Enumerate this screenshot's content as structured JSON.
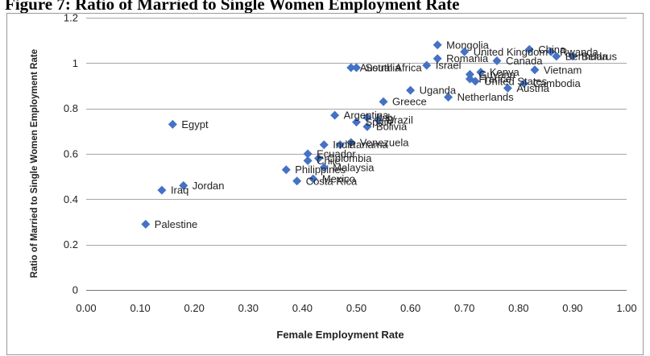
{
  "page": {
    "title": "Figure 7: Ratio of Married to Single Women Employment Rate"
  },
  "chart_data": {
    "type": "scatter",
    "title": "",
    "xlabel": "Female Employment Rate",
    "ylabel": "Ratio of Married to Single Women Employment Rate",
    "xlim": [
      0,
      1
    ],
    "ylim": [
      0,
      1.2
    ],
    "xticks": [
      "0.00",
      "0.10",
      "0.20",
      "0.30",
      "0.40",
      "0.50",
      "0.60",
      "0.70",
      "0.80",
      "0.90",
      "1.00"
    ],
    "yticks": [
      "0",
      "0.2",
      "0.4",
      "0.6",
      "0.8",
      "1",
      "1.2"
    ],
    "marker_color": "#4472C4",
    "grid": "horizontal",
    "points": [
      {
        "label": "Mongolia",
        "x": 0.65,
        "y": 1.08
      },
      {
        "label": "United Kingdom",
        "x": 0.7,
        "y": 1.05
      },
      {
        "label": "China",
        "x": 0.82,
        "y": 1.06
      },
      {
        "label": "Rwanda",
        "x": 0.86,
        "y": 1.05
      },
      {
        "label": "Bermuda",
        "x": 0.87,
        "y": 1.03
      },
      {
        "label": "Belarus",
        "x": 0.9,
        "y": 1.03
      },
      {
        "label": "Romania",
        "x": 0.65,
        "y": 1.02
      },
      {
        "label": "Canada",
        "x": 0.76,
        "y": 1.01
      },
      {
        "label": "Israel",
        "x": 0.63,
        "y": 0.99
      },
      {
        "label": "South Africa",
        "x": 0.5,
        "y": 0.98
      },
      {
        "label": "Australia",
        "x": 0.49,
        "y": 0.98
      },
      {
        "label": "Vietnam",
        "x": 0.83,
        "y": 0.97
      },
      {
        "label": "Kenya",
        "x": 0.73,
        "y": 0.96
      },
      {
        "label": "Guyana",
        "x": 0.71,
        "y": 0.95
      },
      {
        "label": "France",
        "x": 0.71,
        "y": 0.93
      },
      {
        "label": "United States",
        "x": 0.72,
        "y": 0.92
      },
      {
        "label": "Cambodia",
        "x": 0.81,
        "y": 0.91
      },
      {
        "label": "Austria",
        "x": 0.78,
        "y": 0.89
      },
      {
        "label": "Uganda",
        "x": 0.6,
        "y": 0.88
      },
      {
        "label": "Netherlands",
        "x": 0.67,
        "y": 0.85
      },
      {
        "label": "Greece",
        "x": 0.55,
        "y": 0.83
      },
      {
        "label": "Argentina",
        "x": 0.46,
        "y": 0.77
      },
      {
        "label": "Italy",
        "x": 0.52,
        "y": 0.76
      },
      {
        "label": "Brazil",
        "x": 0.54,
        "y": 0.75
      },
      {
        "label": "Spain",
        "x": 0.5,
        "y": 0.74
      },
      {
        "label": "Bolivia",
        "x": 0.52,
        "y": 0.72
      },
      {
        "label": "Egypt",
        "x": 0.16,
        "y": 0.73
      },
      {
        "label": "Venezuela",
        "x": 0.49,
        "y": 0.65
      },
      {
        "label": "Panama",
        "x": 0.47,
        "y": 0.64
      },
      {
        "label": "India",
        "x": 0.44,
        "y": 0.64
      },
      {
        "label": "Ecuador",
        "x": 0.41,
        "y": 0.6
      },
      {
        "label": "Colombia",
        "x": 0.43,
        "y": 0.58
      },
      {
        "label": "Chile",
        "x": 0.41,
        "y": 0.57
      },
      {
        "label": "Malaysia",
        "x": 0.44,
        "y": 0.54
      },
      {
        "label": "Philippines",
        "x": 0.37,
        "y": 0.53
      },
      {
        "label": "Mexico",
        "x": 0.42,
        "y": 0.49
      },
      {
        "label": "Costa Rica",
        "x": 0.39,
        "y": 0.48
      },
      {
        "label": "Jordan",
        "x": 0.18,
        "y": 0.46
      },
      {
        "label": "Iraq",
        "x": 0.14,
        "y": 0.44
      },
      {
        "label": "Palestine",
        "x": 0.11,
        "y": 0.29
      }
    ]
  }
}
